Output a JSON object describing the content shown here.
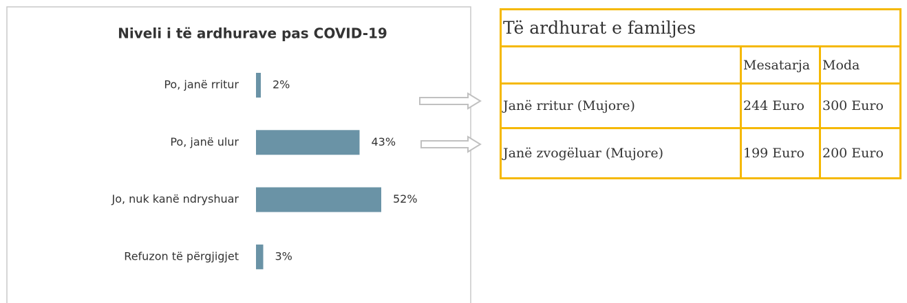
{
  "chart_data": {
    "type": "bar",
    "orientation": "horizontal",
    "title": "Niveli i të ardhurave pas COVID-19",
    "categories": [
      "Po, janë rritur",
      "Po, janë ulur",
      "Jo, nuk kanë ndryshuar",
      "Refuzon të përgjigjet"
    ],
    "values": [
      2,
      43,
      52,
      3
    ],
    "value_labels": [
      "2%",
      "43%",
      "52%",
      "3%"
    ],
    "color": "#6a93a6"
  },
  "table": {
    "title": "Të ardhurat e familjes",
    "columns": [
      "Mesatarja",
      "Moda"
    ],
    "rows": [
      [
        "Janë rritur (Mujore)",
        "244 Euro",
        "300 Euro"
      ],
      [
        "Janë zvogëluar (Mujore)",
        "199 Euro",
        "200 Euro"
      ]
    ]
  }
}
